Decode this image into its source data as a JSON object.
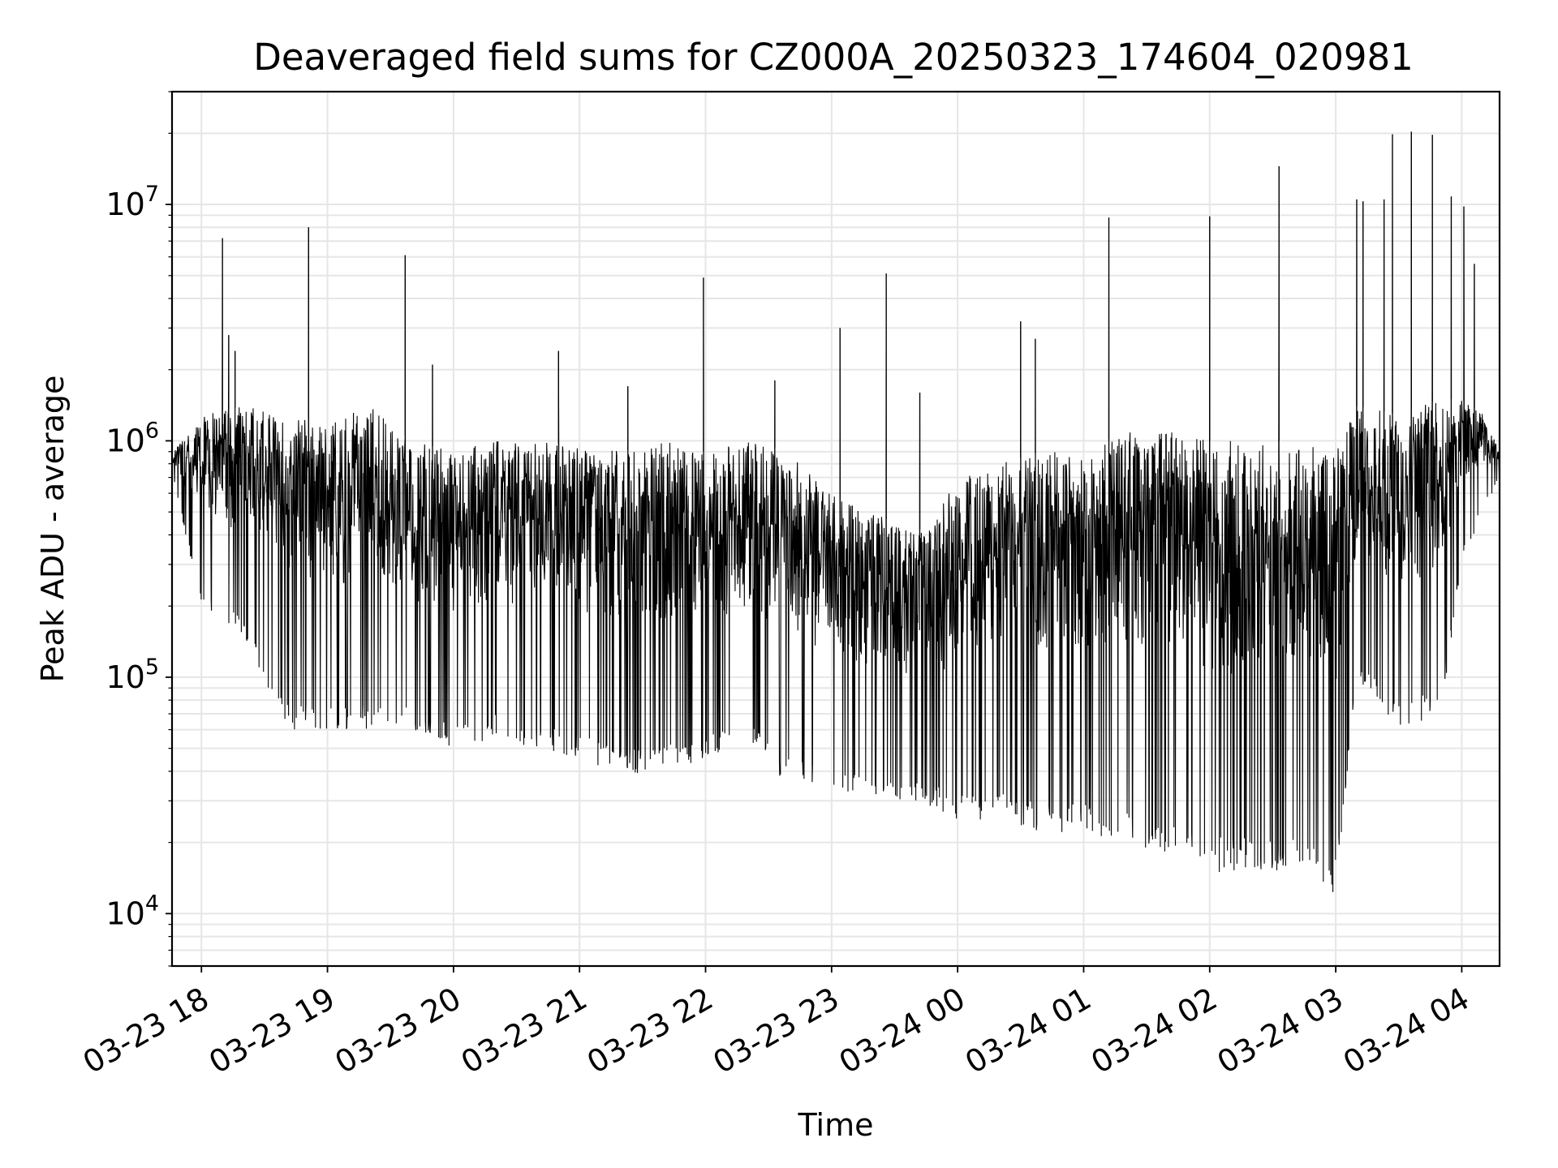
{
  "chart_data": {
    "type": "line",
    "title": "Deaveraged field sums for CZ000A_20250323_174604_020981",
    "xlabel": "Time",
    "ylabel": "Peak ADU - average",
    "y_scale": "log",
    "ylim": [
      6000,
      30000000
    ],
    "xlim": [
      "2025-03-23 17:46",
      "2025-03-24 04:18"
    ],
    "grid": true,
    "line_color": "#000000",
    "grid_color": "#e6e6e6",
    "y_ticks": [
      {
        "value": 10000,
        "base": "10",
        "exp": "4"
      },
      {
        "value": 100000,
        "base": "10",
        "exp": "5"
      },
      {
        "value": 1000000,
        "base": "10",
        "exp": "6"
      },
      {
        "value": 10000000,
        "base": "10",
        "exp": "7"
      }
    ],
    "x_ticks": [
      {
        "value": "2025-03-23 18:00",
        "label": "03-23 18"
      },
      {
        "value": "2025-03-23 19:00",
        "label": "03-23 19"
      },
      {
        "value": "2025-03-23 20:00",
        "label": "03-23 20"
      },
      {
        "value": "2025-03-23 21:00",
        "label": "03-23 21"
      },
      {
        "value": "2025-03-23 22:00",
        "label": "03-23 22"
      },
      {
        "value": "2025-03-23 23:00",
        "label": "03-23 23"
      },
      {
        "value": "2025-03-24 00:00",
        "label": "03-24 00"
      },
      {
        "value": "2025-03-24 01:00",
        "label": "03-24 01"
      },
      {
        "value": "2025-03-24 02:00",
        "label": "03-24 02"
      },
      {
        "value": "2025-03-24 03:00",
        "label": "03-24 03"
      },
      {
        "value": "2025-03-24 04:00",
        "label": "03-24 04"
      }
    ],
    "series": [
      {
        "envelope": {
          "time": [
            "2025-03-23 17:46",
            "2025-03-23 17:50",
            "2025-03-23 18:00",
            "2025-03-23 18:20",
            "2025-03-23 18:40",
            "2025-03-23 19:00",
            "2025-03-23 19:20",
            "2025-03-23 19:40",
            "2025-03-23 20:00",
            "2025-03-23 20:20",
            "2025-03-23 20:40",
            "2025-03-23 21:00",
            "2025-03-23 21:20",
            "2025-03-23 21:40",
            "2025-03-23 22:00",
            "2025-03-23 22:20",
            "2025-03-23 22:40",
            "2025-03-23 23:00",
            "2025-03-23 23:20",
            "2025-03-23 23:40",
            "2025-03-24 00:00",
            "2025-03-24 00:20",
            "2025-03-24 00:40",
            "2025-03-24 01:00",
            "2025-03-24 01:20",
            "2025-03-24 01:40",
            "2025-03-24 02:00",
            "2025-03-24 02:20",
            "2025-03-24 02:40",
            "2025-03-24 03:00",
            "2025-03-24 03:10",
            "2025-03-24 03:30",
            "2025-03-24 03:50",
            "2025-03-24 04:00",
            "2025-03-24 04:10",
            "2025-03-24 04:18"
          ],
          "upper": [
            900000,
            1000000,
            1300000,
            1400000,
            1300000,
            1200000,
            1400000,
            1000000,
            900000,
            1000000,
            1000000,
            950000,
            900000,
            1000000,
            900000,
            1000000,
            900000,
            600000,
            500000,
            400000,
            700000,
            800000,
            900000,
            900000,
            1100000,
            1100000,
            1000000,
            1000000,
            1000000,
            900000,
            1400000,
            1300000,
            1500000,
            1500000,
            1300000,
            900000
          ],
          "lower": [
            750000,
            500000,
            200000,
            150000,
            60000,
            60000,
            60000,
            60000,
            50000,
            55000,
            50000,
            45000,
            38000,
            40000,
            45000,
            50000,
            35000,
            35000,
            28000,
            30000,
            25000,
            25000,
            22000,
            22000,
            20000,
            18000,
            15000,
            15000,
            15000,
            12000,
            100000,
            60000,
            70000,
            300000,
            500000,
            700000
          ]
        },
        "spikes": [
          {
            "time": "2025-03-23 18:10",
            "value": 7200000
          },
          {
            "time": "2025-03-23 18:13",
            "value": 2800000
          },
          {
            "time": "2025-03-23 18:16",
            "value": 2400000
          },
          {
            "time": "2025-03-23 18:51",
            "value": 8000000
          },
          {
            "time": "2025-03-23 19:37",
            "value": 6100000
          },
          {
            "time": "2025-03-23 19:50",
            "value": 2100000
          },
          {
            "time": "2025-03-23 20:50",
            "value": 2400000
          },
          {
            "time": "2025-03-23 21:23",
            "value": 1700000
          },
          {
            "time": "2025-03-23 21:59",
            "value": 4900000
          },
          {
            "time": "2025-03-23 22:33",
            "value": 1800000
          },
          {
            "time": "2025-03-23 23:04",
            "value": 3000000
          },
          {
            "time": "2025-03-23 23:26",
            "value": 5100000
          },
          {
            "time": "2025-03-23 23:42",
            "value": 1600000
          },
          {
            "time": "2025-03-24 00:30",
            "value": 3200000
          },
          {
            "time": "2025-03-24 00:37",
            "value": 2700000
          },
          {
            "time": "2025-03-24 01:12",
            "value": 8800000
          },
          {
            "time": "2025-03-24 02:00",
            "value": 8900000
          },
          {
            "time": "2025-03-24 02:33",
            "value": 14500000
          },
          {
            "time": "2025-03-24 03:10",
            "value": 10500000
          },
          {
            "time": "2025-03-24 03:13",
            "value": 10300000
          },
          {
            "time": "2025-03-24 03:23",
            "value": 10500000
          },
          {
            "time": "2025-03-24 03:27",
            "value": 19800000
          },
          {
            "time": "2025-03-24 03:36",
            "value": 20300000
          },
          {
            "time": "2025-03-24 03:46",
            "value": 19700000
          },
          {
            "time": "2025-03-24 03:55",
            "value": 10800000
          },
          {
            "time": "2025-03-24 04:01",
            "value": 9800000
          },
          {
            "time": "2025-03-24 04:06",
            "value": 5600000
          }
        ]
      }
    ]
  }
}
